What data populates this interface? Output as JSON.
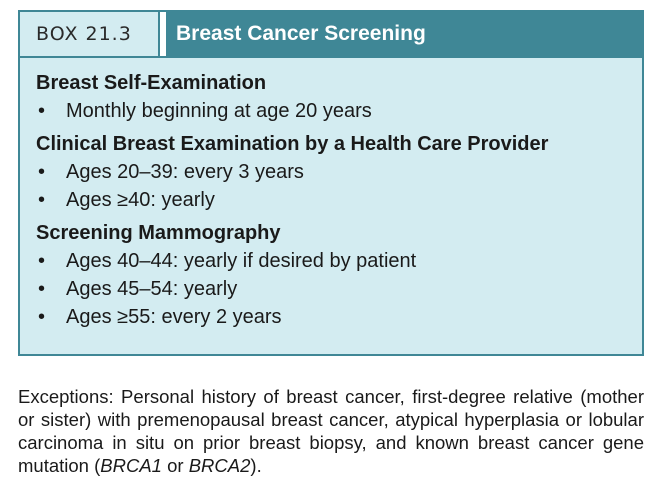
{
  "box": {
    "label": "BOX 21.3",
    "title": "Breast Cancer Screening",
    "sections": [
      {
        "title": "Breast Self-Examination",
        "items": [
          "Monthly beginning at age 20 years"
        ]
      },
      {
        "title": "Clinical Breast Examination by a Health Care Provider",
        "items": [
          "Ages 20–39: every 3 years",
          "Ages ≥40: yearly"
        ]
      },
      {
        "title": "Screening Mammography",
        "items": [
          "Ages 40–44: yearly if desired by patient",
          "Ages 45–54: yearly",
          "Ages ≥55: every 2 years"
        ]
      }
    ],
    "bullet": "•"
  },
  "note": {
    "text": "Exceptions: Personal history of breast cancer, first-degree relative (mother or sister) with premenopausal breast cancer, atypical hyperplasia or lobular carcinoma in situ on prior breast biopsy, and known breast cancer gene mutation (",
    "gene1": "BRCA1",
    "or": " or ",
    "gene2": "BRCA2",
    "end": ")."
  }
}
